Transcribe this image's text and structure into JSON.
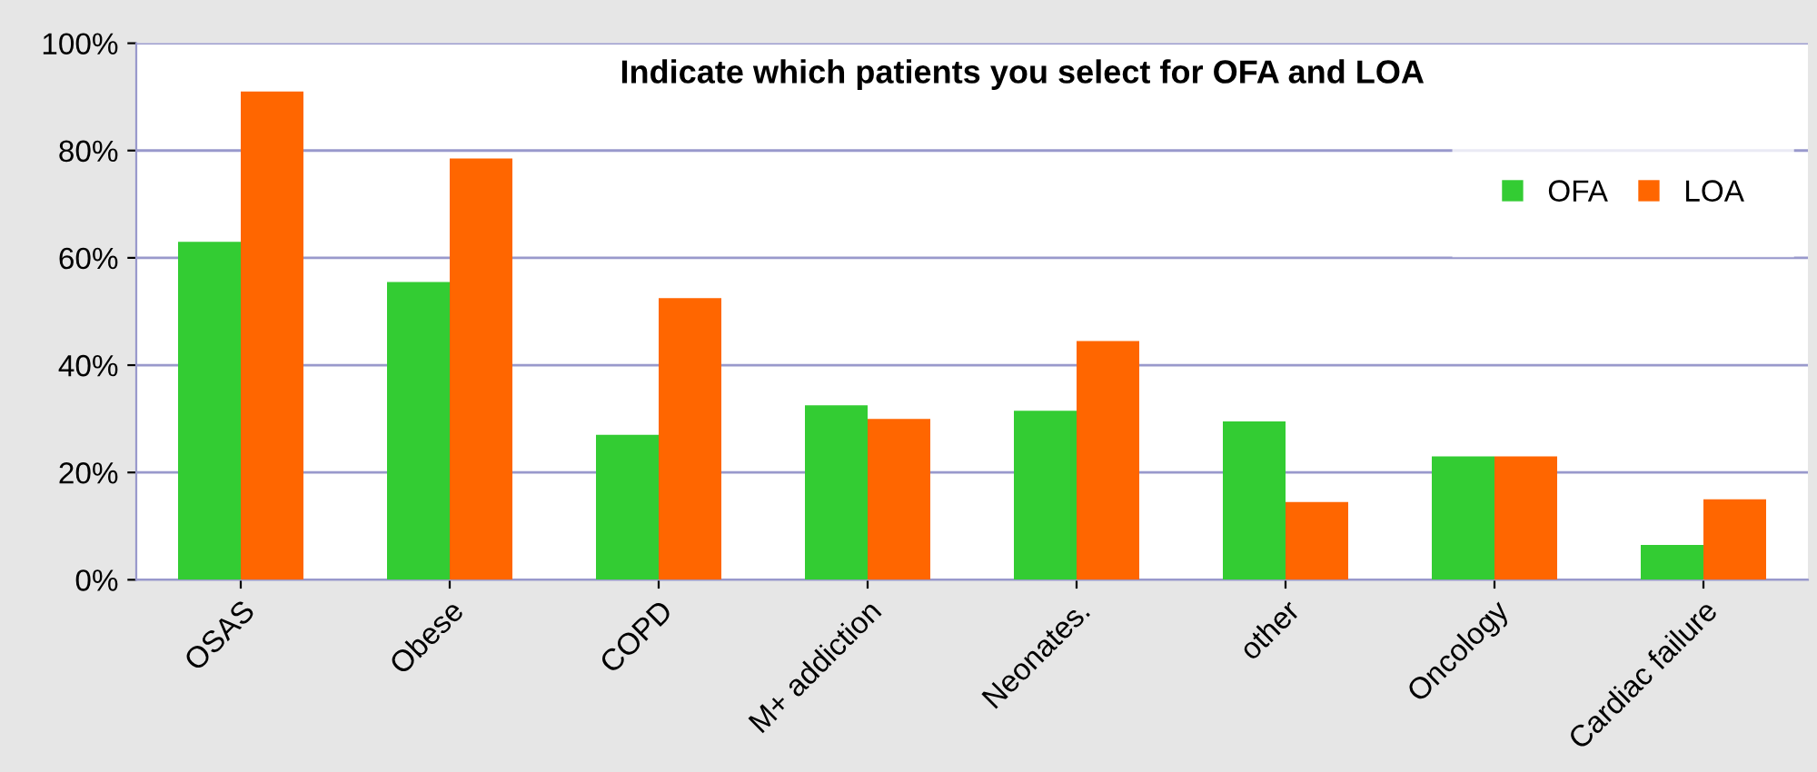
{
  "chart_data": {
    "type": "bar",
    "title": "Indicate which patients you select for OFA and LOA",
    "categories": [
      "OSAS",
      "Obese",
      "COPD",
      "M+ addiction",
      "Neonates.",
      "other",
      "Oncology",
      "Cardiac failure"
    ],
    "series": [
      {
        "name": "OFA",
        "color": "#33cc33",
        "values": [
          63,
          55.5,
          27,
          32.5,
          31.5,
          29.5,
          23,
          6.5
        ]
      },
      {
        "name": "LOA",
        "color": "#ff6600",
        "values": [
          91,
          78.5,
          52.5,
          30,
          44.5,
          14.5,
          23,
          15
        ]
      }
    ],
    "ylim": [
      0,
      100
    ],
    "yticks": [
      {
        "value": 0,
        "label": "0%"
      },
      {
        "value": 20,
        "label": "20%"
      },
      {
        "value": 40,
        "label": "40%"
      },
      {
        "value": 60,
        "label": "60%"
      },
      {
        "value": 80,
        "label": "80%"
      },
      {
        "value": 100,
        "label": "100%"
      }
    ],
    "grid": "y",
    "legend": "right"
  }
}
